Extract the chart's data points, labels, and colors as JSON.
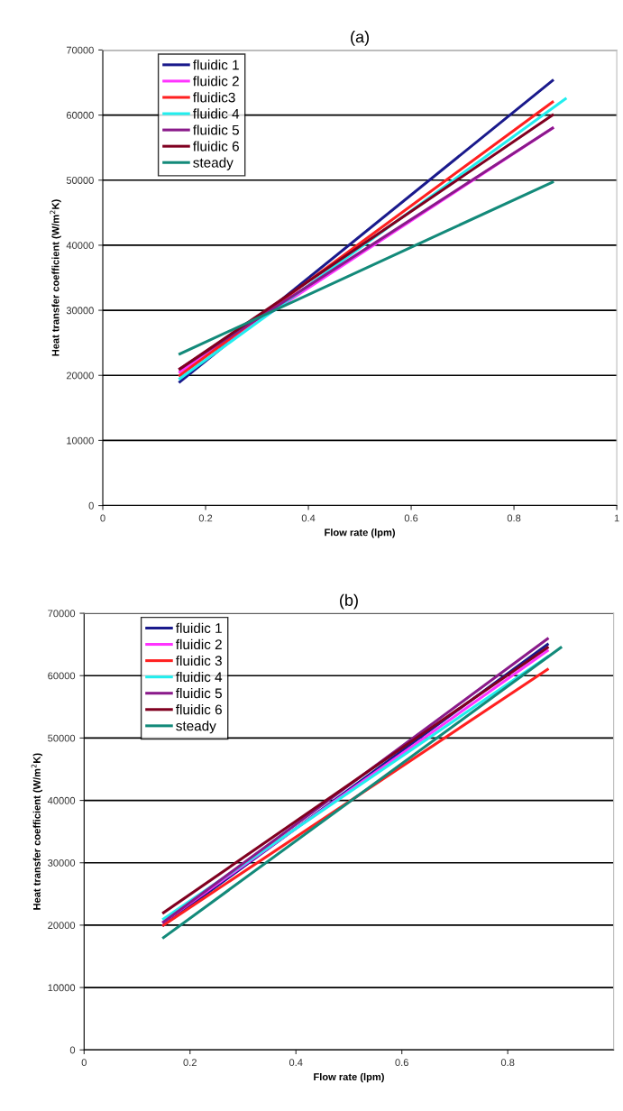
{
  "chart_data": [
    {
      "type": "line",
      "title": "(a)",
      "xlabel": "Flow rate (lpm)",
      "ylabel": "Heat transfer coefficient (W/m$^{2}$K)",
      "xlim": [
        0,
        1
      ],
      "xticks": [
        0,
        0.2,
        0.4,
        0.6,
        0.8,
        1
      ],
      "ylim": [
        0,
        70000
      ],
      "yticks": [
        0,
        10000,
        20000,
        30000,
        40000,
        50000,
        60000,
        70000
      ],
      "grid": "y",
      "legend": "top left",
      "marker": "none",
      "line_style": "solid",
      "series": [
        {
          "name": "fluidic 1",
          "color": "#1a1a8c",
          "x": [
            0.15,
            0.875
          ],
          "values": [
            19000,
            65300
          ]
        },
        {
          "name": "fluidic 2",
          "color": "#ff33ff",
          "x": [
            0.15,
            0.875
          ],
          "values": [
            20500,
            58000
          ]
        },
        {
          "name": "fluidic3",
          "color": "#ff2020",
          "x": [
            0.15,
            0.875
          ],
          "values": [
            20000,
            62000
          ]
        },
        {
          "name": "fluidic 4",
          "color": "#22eeee",
          "x": [
            0.15,
            0.9
          ],
          "values": [
            19500,
            62500
          ]
        },
        {
          "name": "fluidic 5",
          "color": "#8a1a8a",
          "x": [
            0.15,
            0.875
          ],
          "values": [
            21000,
            58000
          ]
        },
        {
          "name": "fluidic 6",
          "color": "#800020",
          "x": [
            0.15,
            0.875
          ],
          "values": [
            21000,
            60000
          ]
        },
        {
          "name": "steady",
          "color": "#138a7a",
          "x": [
            0.15,
            0.875
          ],
          "values": [
            23300,
            49700
          ]
        }
      ]
    },
    {
      "type": "line",
      "title": "(b)",
      "xlabel": "Flow rate (lpm)",
      "ylabel": "Heat transfer coefficient (W/m$^{2}$K)",
      "xlim": [
        0,
        1
      ],
      "xticks": [
        0,
        0.2,
        0.4,
        0.6,
        0.8
      ],
      "ylim": [
        0,
        70000
      ],
      "yticks": [
        0,
        10000,
        20000,
        30000,
        40000,
        50000,
        60000,
        70000
      ],
      "grid": "y",
      "legend": "top left",
      "marker": "none",
      "line_style": "solid",
      "series": [
        {
          "name": "fluidic 1",
          "color": "#1a1a8c",
          "x": [
            0.15,
            0.875
          ],
          "values": [
            20000,
            65000
          ]
        },
        {
          "name": "fluidic 2",
          "color": "#ff33ff",
          "x": [
            0.15,
            0.875
          ],
          "values": [
            20500,
            64000
          ]
        },
        {
          "name": "fluidic 3",
          "color": "#ff2020",
          "x": [
            0.15,
            0.875
          ],
          "values": [
            20000,
            61000
          ]
        },
        {
          "name": "fluidic 4",
          "color": "#22eeee",
          "x": [
            0.15,
            0.875
          ],
          "values": [
            21000,
            63000
          ]
        },
        {
          "name": "fluidic 5",
          "color": "#8a1a8a",
          "x": [
            0.15,
            0.875
          ],
          "values": [
            20500,
            65900
          ]
        },
        {
          "name": "fluidic 6",
          "color": "#800020",
          "x": [
            0.15,
            0.875
          ],
          "values": [
            22000,
            64500
          ]
        },
        {
          "name": "steady",
          "color": "#138a7a",
          "x": [
            0.15,
            0.9
          ],
          "values": [
            18000,
            64500
          ]
        }
      ]
    }
  ]
}
